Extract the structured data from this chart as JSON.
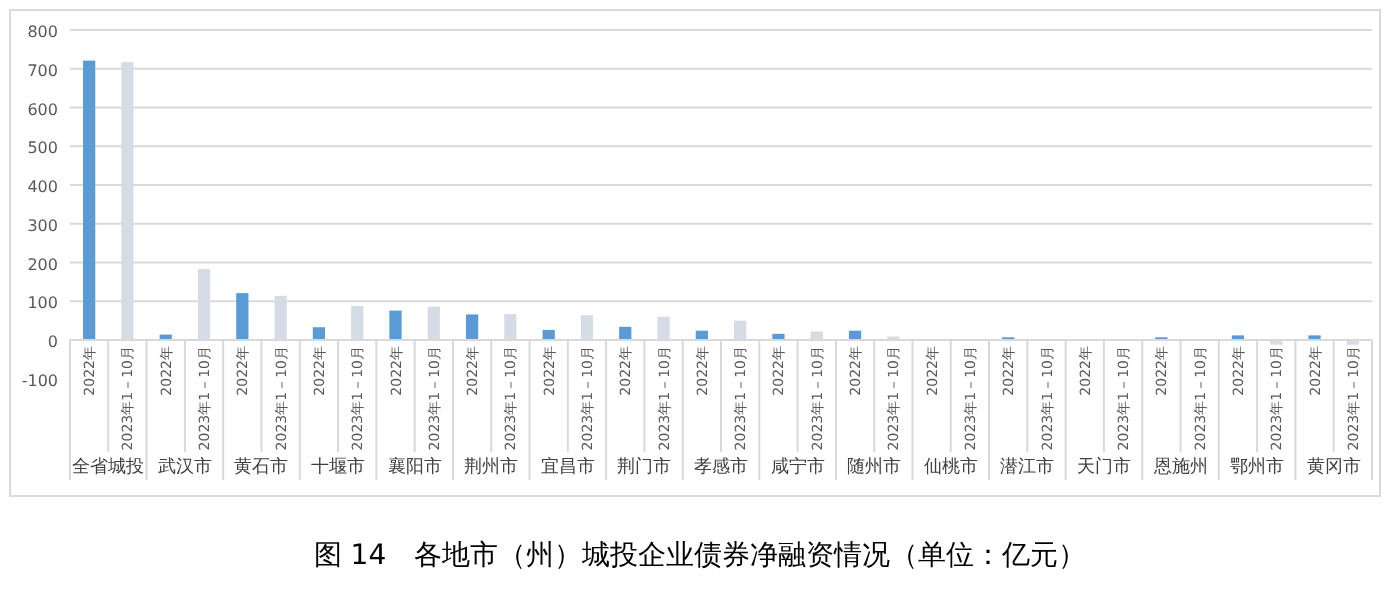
{
  "chart_data": {
    "type": "bar",
    "title": "图 14　各地市（州）城投企业债券净融资情况（单位：亿元）",
    "categories": [
      "全省城投",
      "武汉市",
      "黄石市",
      "十堰市",
      "襄阳市",
      "荆州市",
      "宜昌市",
      "荆门市",
      "孝感市",
      "咸宁市",
      "随州市",
      "仙桃市",
      "潜江市",
      "天门市",
      "恩施州",
      "鄂州市",
      "黄冈市"
    ],
    "series": [
      {
        "name": "2022年",
        "color": "#5b9bd5",
        "values": [
          721,
          14,
          121,
          33,
          76,
          66,
          26,
          34,
          24,
          16,
          24,
          0,
          7,
          0,
          7,
          12,
          12
        ]
      },
      {
        "name": "2023年1－10月",
        "color": "#d6dce5",
        "values": [
          717,
          183,
          114,
          88,
          86,
          67,
          64,
          60,
          50,
          22,
          9,
          null,
          2,
          0,
          1,
          -12,
          -12
        ]
      }
    ],
    "ylim": [
      -100,
      800
    ],
    "yticks": [
      -100,
      0,
      100,
      200,
      300,
      400,
      500,
      600,
      700,
      800
    ],
    "grid": "y",
    "legend": false
  }
}
